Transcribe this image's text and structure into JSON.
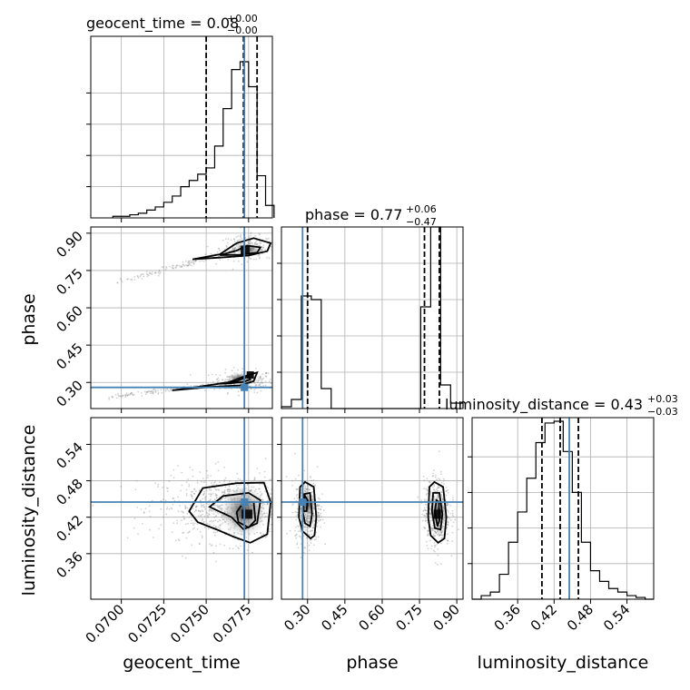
{
  "colors": {
    "truth": "#4682b4",
    "hist": "#000000",
    "grid": "#b0b0b0",
    "scatter": "#7f7f7f"
  },
  "chart_data": {
    "type": "corner",
    "parameters": [
      "geocent_time",
      "phase",
      "luminosity_distance"
    ],
    "grid": true,
    "truths": {
      "geocent_time": 0.07725,
      "phase": 0.28,
      "luminosity_distance": 0.445
    },
    "ranges": {
      "geocent_time": [
        0.0682,
        0.0789
      ],
      "phase": [
        0.195,
        0.925
      ],
      "luminosity_distance": [
        0.285,
        0.584
      ]
    },
    "ticks": {
      "geocent_time": [
        {
          "value": 0.07,
          "label": "0.0700"
        },
        {
          "value": 0.0725,
          "label": "0.0725"
        },
        {
          "value": 0.075,
          "label": "0.0750"
        },
        {
          "value": 0.0775,
          "label": "0.0775"
        }
      ],
      "phase": [
        {
          "value": 0.3,
          "label": "0.30"
        },
        {
          "value": 0.45,
          "label": "0.45"
        },
        {
          "value": 0.6,
          "label": "0.60"
        },
        {
          "value": 0.75,
          "label": "0.75"
        },
        {
          "value": 0.9,
          "label": "0.90"
        }
      ],
      "luminosity_distance": [
        {
          "value": 0.36,
          "label": "0.36"
        },
        {
          "value": 0.42,
          "label": "0.42"
        },
        {
          "value": 0.48,
          "label": "0.48"
        },
        {
          "value": 0.54,
          "label": "0.54"
        }
      ]
    },
    "titles": [
      {
        "param": "geocent_time",
        "text": "geocent_time = 0.08",
        "sup": "+0.00",
        "sub": "−0.00",
        "median": 0.0772,
        "lower": 0.075,
        "upper": 0.078
      },
      {
        "param": "phase",
        "text": "phase = 0.77",
        "sup": "+0.06",
        "sub": "−0.47",
        "median": 0.77,
        "lower": 0.3,
        "upper": 0.83
      },
      {
        "param": "luminosity_distance",
        "text": "luminosity_distance = 0.43",
        "sup": "+0.03",
        "sub": "−0.03",
        "median": 0.43,
        "lower": 0.4,
        "upper": 0.46
      }
    ],
    "histograms": {
      "geocent_time": {
        "edges": [
          0.0695,
          0.07,
          0.0705,
          0.071,
          0.0715,
          0.072,
          0.0725,
          0.073,
          0.0735,
          0.074,
          0.0745,
          0.075,
          0.0755,
          0.076,
          0.0765,
          0.077,
          0.0775,
          0.078,
          0.0785,
          0.079
        ],
        "counts": [
          0.01,
          0.01,
          0.02,
          0.03,
          0.05,
          0.07,
          0.1,
          0.14,
          0.2,
          0.24,
          0.28,
          0.32,
          0.46,
          0.7,
          0.95,
          1.0,
          0.84,
          0.27,
          0.08
        ]
      },
      "phase": {
        "edges": [
          0.195,
          0.235,
          0.275,
          0.315,
          0.355,
          0.395,
          0.435,
          0.475,
          0.515,
          0.555,
          0.595,
          0.635,
          0.675,
          0.715,
          0.755,
          0.795,
          0.835,
          0.875,
          0.925
        ],
        "counts": [
          0.01,
          0.05,
          0.62,
          0.6,
          0.11,
          0.0,
          0.0,
          0.0,
          0.0,
          0.0,
          0.0,
          0.0,
          0.0,
          0.0,
          0.56,
          1.0,
          0.13,
          0.03
        ]
      },
      "luminosity_distance": {
        "edges": [
          0.285,
          0.3,
          0.315,
          0.33,
          0.345,
          0.36,
          0.375,
          0.39,
          0.405,
          0.42,
          0.435,
          0.45,
          0.465,
          0.48,
          0.495,
          0.51,
          0.525,
          0.54,
          0.555,
          0.57,
          0.584
        ],
        "counts": [
          0.0,
          0.02,
          0.04,
          0.14,
          0.32,
          0.49,
          0.68,
          0.88,
          0.99,
          1.0,
          0.83,
          0.6,
          0.32,
          0.16,
          0.1,
          0.06,
          0.04,
          0.02,
          0.01,
          0.0
        ]
      }
    },
    "hist_quantiles": {
      "geocent_time": {
        "lines": [
          0.075,
          0.0772,
          0.078
        ],
        "truth": 0.07725
      },
      "phase": {
        "lines": [
          0.3,
          0.77,
          0.83
        ],
        "truth": 0.28
      },
      "luminosity_distance": {
        "lines": [
          0.4,
          0.43,
          0.46
        ],
        "truth": 0.445
      }
    },
    "contours": {
      "phase_vs_geocent_time": [
        [
          [
            0.073,
            0.268
          ],
          [
            0.0746,
            0.283
          ],
          [
            0.0763,
            0.3
          ],
          [
            0.0775,
            0.33
          ],
          [
            0.078,
            0.34
          ],
          [
            0.0778,
            0.305
          ],
          [
            0.077,
            0.288
          ],
          [
            0.0752,
            0.282
          ],
          [
            0.073,
            0.268
          ]
        ],
        [
          [
            0.0758,
            0.295
          ],
          [
            0.0768,
            0.305
          ],
          [
            0.0775,
            0.325
          ],
          [
            0.0776,
            0.312
          ],
          [
            0.0772,
            0.302
          ],
          [
            0.0763,
            0.296
          ],
          [
            0.0758,
            0.295
          ]
        ],
        [
          [
            0.0742,
            0.795
          ],
          [
            0.0758,
            0.815
          ],
          [
            0.0768,
            0.86
          ],
          [
            0.0778,
            0.88
          ],
          [
            0.0788,
            0.86
          ],
          [
            0.0786,
            0.828
          ],
          [
            0.0775,
            0.81
          ],
          [
            0.0758,
            0.802
          ],
          [
            0.0742,
            0.795
          ]
        ],
        [
          [
            0.0758,
            0.812
          ],
          [
            0.0768,
            0.83
          ],
          [
            0.0774,
            0.85
          ],
          [
            0.0782,
            0.843
          ],
          [
            0.078,
            0.822
          ],
          [
            0.077,
            0.813
          ],
          [
            0.0758,
            0.812
          ]
        ]
      ],
      "luminosity_distance_vs_geocent_time": [
        [
          [
            0.074,
            0.43
          ],
          [
            0.0748,
            0.468
          ],
          [
            0.0768,
            0.476
          ],
          [
            0.0784,
            0.477
          ],
          [
            0.0788,
            0.445
          ],
          [
            0.0786,
            0.392
          ],
          [
            0.0776,
            0.378
          ],
          [
            0.0766,
            0.388
          ],
          [
            0.0756,
            0.4
          ],
          [
            0.0745,
            0.412
          ],
          [
            0.074,
            0.43
          ]
        ],
        [
          [
            0.0752,
            0.437
          ],
          [
            0.076,
            0.455
          ],
          [
            0.0775,
            0.46
          ],
          [
            0.0782,
            0.448
          ],
          [
            0.078,
            0.41
          ],
          [
            0.0772,
            0.4
          ],
          [
            0.0765,
            0.42
          ],
          [
            0.0752,
            0.437
          ]
        ],
        [
          [
            0.0768,
            0.428
          ],
          [
            0.0772,
            0.445
          ],
          [
            0.0778,
            0.445
          ],
          [
            0.0779,
            0.415
          ],
          [
            0.0775,
            0.403
          ],
          [
            0.0769,
            0.412
          ],
          [
            0.0768,
            0.428
          ]
        ]
      ],
      "luminosity_distance_vs_phase": [
        [
          [
            0.265,
            0.42
          ],
          [
            0.27,
            0.47
          ],
          [
            0.29,
            0.478
          ],
          [
            0.325,
            0.47
          ],
          [
            0.335,
            0.42
          ],
          [
            0.328,
            0.39
          ],
          [
            0.312,
            0.385
          ],
          [
            0.28,
            0.397
          ],
          [
            0.265,
            0.42
          ]
        ],
        [
          [
            0.28,
            0.43
          ],
          [
            0.285,
            0.458
          ],
          [
            0.31,
            0.46
          ],
          [
            0.318,
            0.425
          ],
          [
            0.31,
            0.405
          ],
          [
            0.29,
            0.41
          ],
          [
            0.28,
            0.43
          ]
        ],
        [
          [
            0.283,
            0.44
          ],
          [
            0.29,
            0.455
          ],
          [
            0.3,
            0.448
          ],
          [
            0.296,
            0.43
          ],
          [
            0.285,
            0.43
          ],
          [
            0.283,
            0.44
          ]
        ],
        [
          [
            0.785,
            0.42
          ],
          [
            0.79,
            0.47
          ],
          [
            0.81,
            0.478
          ],
          [
            0.845,
            0.47
          ],
          [
            0.858,
            0.42
          ],
          [
            0.85,
            0.385
          ],
          [
            0.825,
            0.378
          ],
          [
            0.795,
            0.39
          ],
          [
            0.785,
            0.42
          ]
        ],
        [
          [
            0.8,
            0.43
          ],
          [
            0.805,
            0.46
          ],
          [
            0.83,
            0.46
          ],
          [
            0.842,
            0.425
          ],
          [
            0.835,
            0.4
          ],
          [
            0.812,
            0.402
          ],
          [
            0.8,
            0.43
          ]
        ],
        [
          [
            0.812,
            0.43
          ],
          [
            0.818,
            0.448
          ],
          [
            0.828,
            0.445
          ],
          [
            0.83,
            0.415
          ],
          [
            0.822,
            0.405
          ],
          [
            0.812,
            0.43
          ]
        ]
      ]
    }
  }
}
